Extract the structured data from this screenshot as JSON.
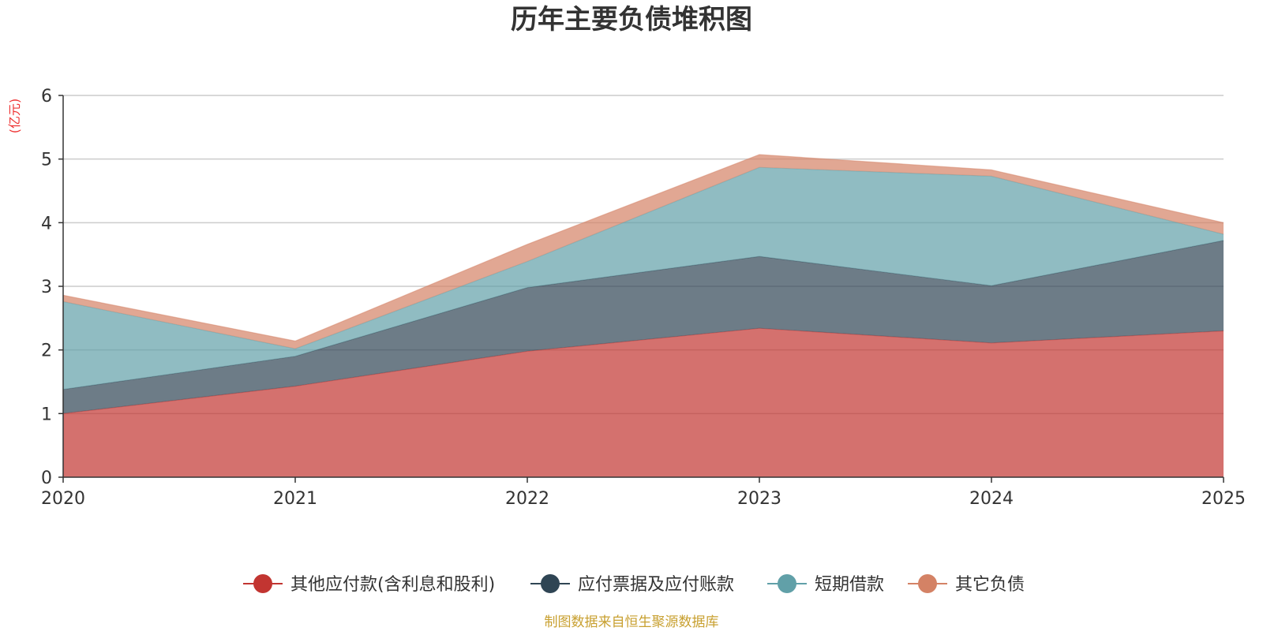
{
  "chart_data": {
    "type": "area",
    "stacked": true,
    "title": "历年主要负债堆积图",
    "unit_label": "(亿元)",
    "xlabel": "",
    "ylabel": "(亿元)",
    "x": [
      "2020",
      "2021",
      "2022",
      "2023",
      "2024",
      "2025"
    ],
    "ylim": [
      0,
      6
    ],
    "yticks": [
      "0",
      "1",
      "2",
      "3",
      "4",
      "5",
      "6"
    ],
    "grid": true,
    "legend_position": "bottom",
    "series": [
      {
        "name": "其他应付款(含利息和股利)",
        "color": "#c23531",
        "values": [
          1.0,
          1.43,
          1.98,
          2.34,
          2.11,
          2.3
        ]
      },
      {
        "name": "应付票据及应付账款",
        "color": "#2f4554",
        "values": [
          0.38,
          0.47,
          1.0,
          1.13,
          0.9,
          1.42
        ]
      },
      {
        "name": "短期借款",
        "color": "#61a0a8",
        "values": [
          1.38,
          0.12,
          0.41,
          1.4,
          1.72,
          0.1
        ]
      },
      {
        "name": "其它负债",
        "color": "#d48265",
        "values": [
          0.1,
          0.12,
          0.27,
          0.2,
          0.1,
          0.18
        ]
      }
    ],
    "source": "制图数据来自恒生聚源数据库",
    "source_color": "#c8a030",
    "unit_color": "#ee3333"
  }
}
